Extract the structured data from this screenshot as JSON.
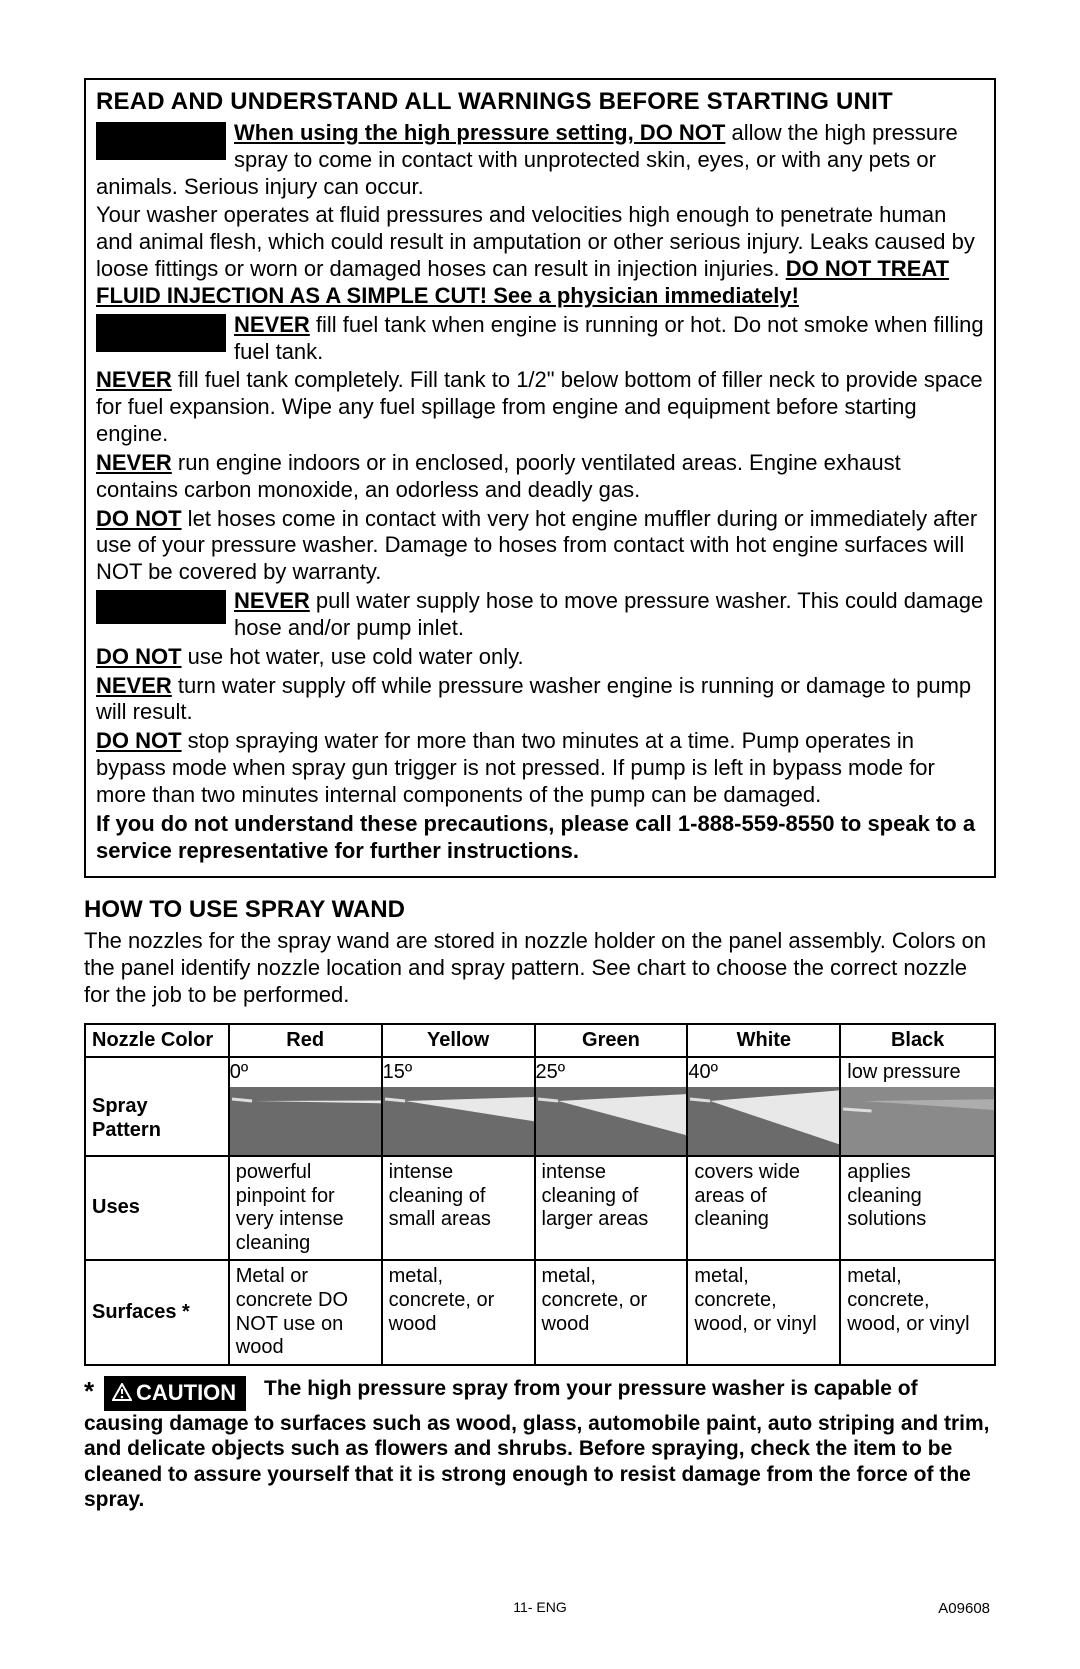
{
  "warning_box": {
    "title": "READ AND UNDERSTAND ALL WARNINGS BEFORE STARTING UNIT",
    "p1_lead": "When using the high pressure setting, DO NOT",
    "p1_rest": " allow the high pressure spray to come in contact with unprotected skin, eyes, or with any pets or animals. Serious injury can occur.",
    "p2": "Your washer operates at fluid pressures and velocities high enough to penetrate human and animal flesh, which could result in amputation or other serious injury. Leaks caused by loose fittings or worn or damaged hoses can result in injection injuries. ",
    "p2_bold": "DO NOT TREAT FLUID INJECTION AS A SIMPLE CUT! See a physician immediately!",
    "p3_lead": "NEVER",
    "p3_rest": " fill fuel tank when engine is running or hot. Do not smoke when filling fuel tank.",
    "p4_lead": "NEVER",
    "p4_rest": " fill fuel tank completely. Fill tank to 1/2\" below bottom of filler neck to provide space for fuel expansion. Wipe any fuel spillage from engine and equipment before starting engine.",
    "p5_lead": "NEVER",
    "p5_rest": " run engine indoors or in enclosed, poorly ventilated areas. Engine exhaust contains carbon monoxide, an odorless and deadly gas.",
    "p6_lead": "DO NOT",
    "p6_rest": " let hoses come in contact with very hot engine muffler during or immediately after use of your pressure washer. Damage to hoses from contact with hot engine surfaces will NOT be covered by warranty.",
    "p7_lead": "NEVER",
    "p7_rest": " pull water supply hose to move pressure washer. This could damage hose and/or pump inlet.",
    "p8_lead": "DO NOT",
    "p8_rest": " use hot water, use cold water only.",
    "p9_lead": "NEVER",
    "p9_rest": " turn water supply off while pressure washer engine is running or damage to pump will result.",
    "p10_lead": "DO NOT",
    "p10_rest": " stop spraying water for more than two minutes at a time. Pump operates in bypass mode when spray gun trigger is not pressed. If pump is left in bypass mode for more than two minutes internal components of the pump can be damaged.",
    "p11": "If you do not understand these precautions, please call 1-888-559-8550 to speak to a service representative for further instructions."
  },
  "howto": {
    "title": "HOW TO USE SPRAY WAND",
    "intro": "The nozzles for the spray wand are stored in nozzle holder on the panel assembly.  Colors on the panel identify nozzle location and spray pattern. See chart to choose the correct nozzle for the job to be performed."
  },
  "table": {
    "headers": [
      "Nozzle Color",
      "Red",
      "Yellow",
      "Green",
      "White",
      "Black"
    ],
    "spray_label": "Spray Pattern",
    "degrees": [
      "0º",
      "15º",
      "25º",
      "40º",
      "low pressure"
    ],
    "spray_angles": [
      2,
      18,
      30,
      45,
      8
    ],
    "uses_label": "Uses",
    "uses": [
      "powerful pinpoint for very intense cleaning",
      "intense cleaning of small areas",
      "intense cleaning of larger areas",
      "covers wide areas of cleaning",
      "applies cleaning solutions"
    ],
    "surfaces_label": "Surfaces *",
    "surfaces": [
      "Metal or concrete DO NOT use on wood",
      "metal, concrete, or wood",
      "metal, concrete, or wood",
      "metal, concrete, wood, or vinyl",
      "metal, concrete, wood, or vinyl"
    ]
  },
  "caution": {
    "star": "*",
    "badge": "CAUTION",
    "text": "The high pressure spray from your pressure washer is capable of causing damage to surfaces such as wood, glass, automobile paint, auto striping and trim, and delicate objects such as flowers and shrubs. Before spraying, check the item to be cleaned to assure yourself that it is strong enough to resist damage from the force of the spray."
  },
  "footer": {
    "center": "11- ENG",
    "right": "A09608"
  },
  "colors": {
    "text": "#000000",
    "background": "#ffffff",
    "spray_bg": "#6b6b6b",
    "spray_cone": "#e8e8e8"
  }
}
